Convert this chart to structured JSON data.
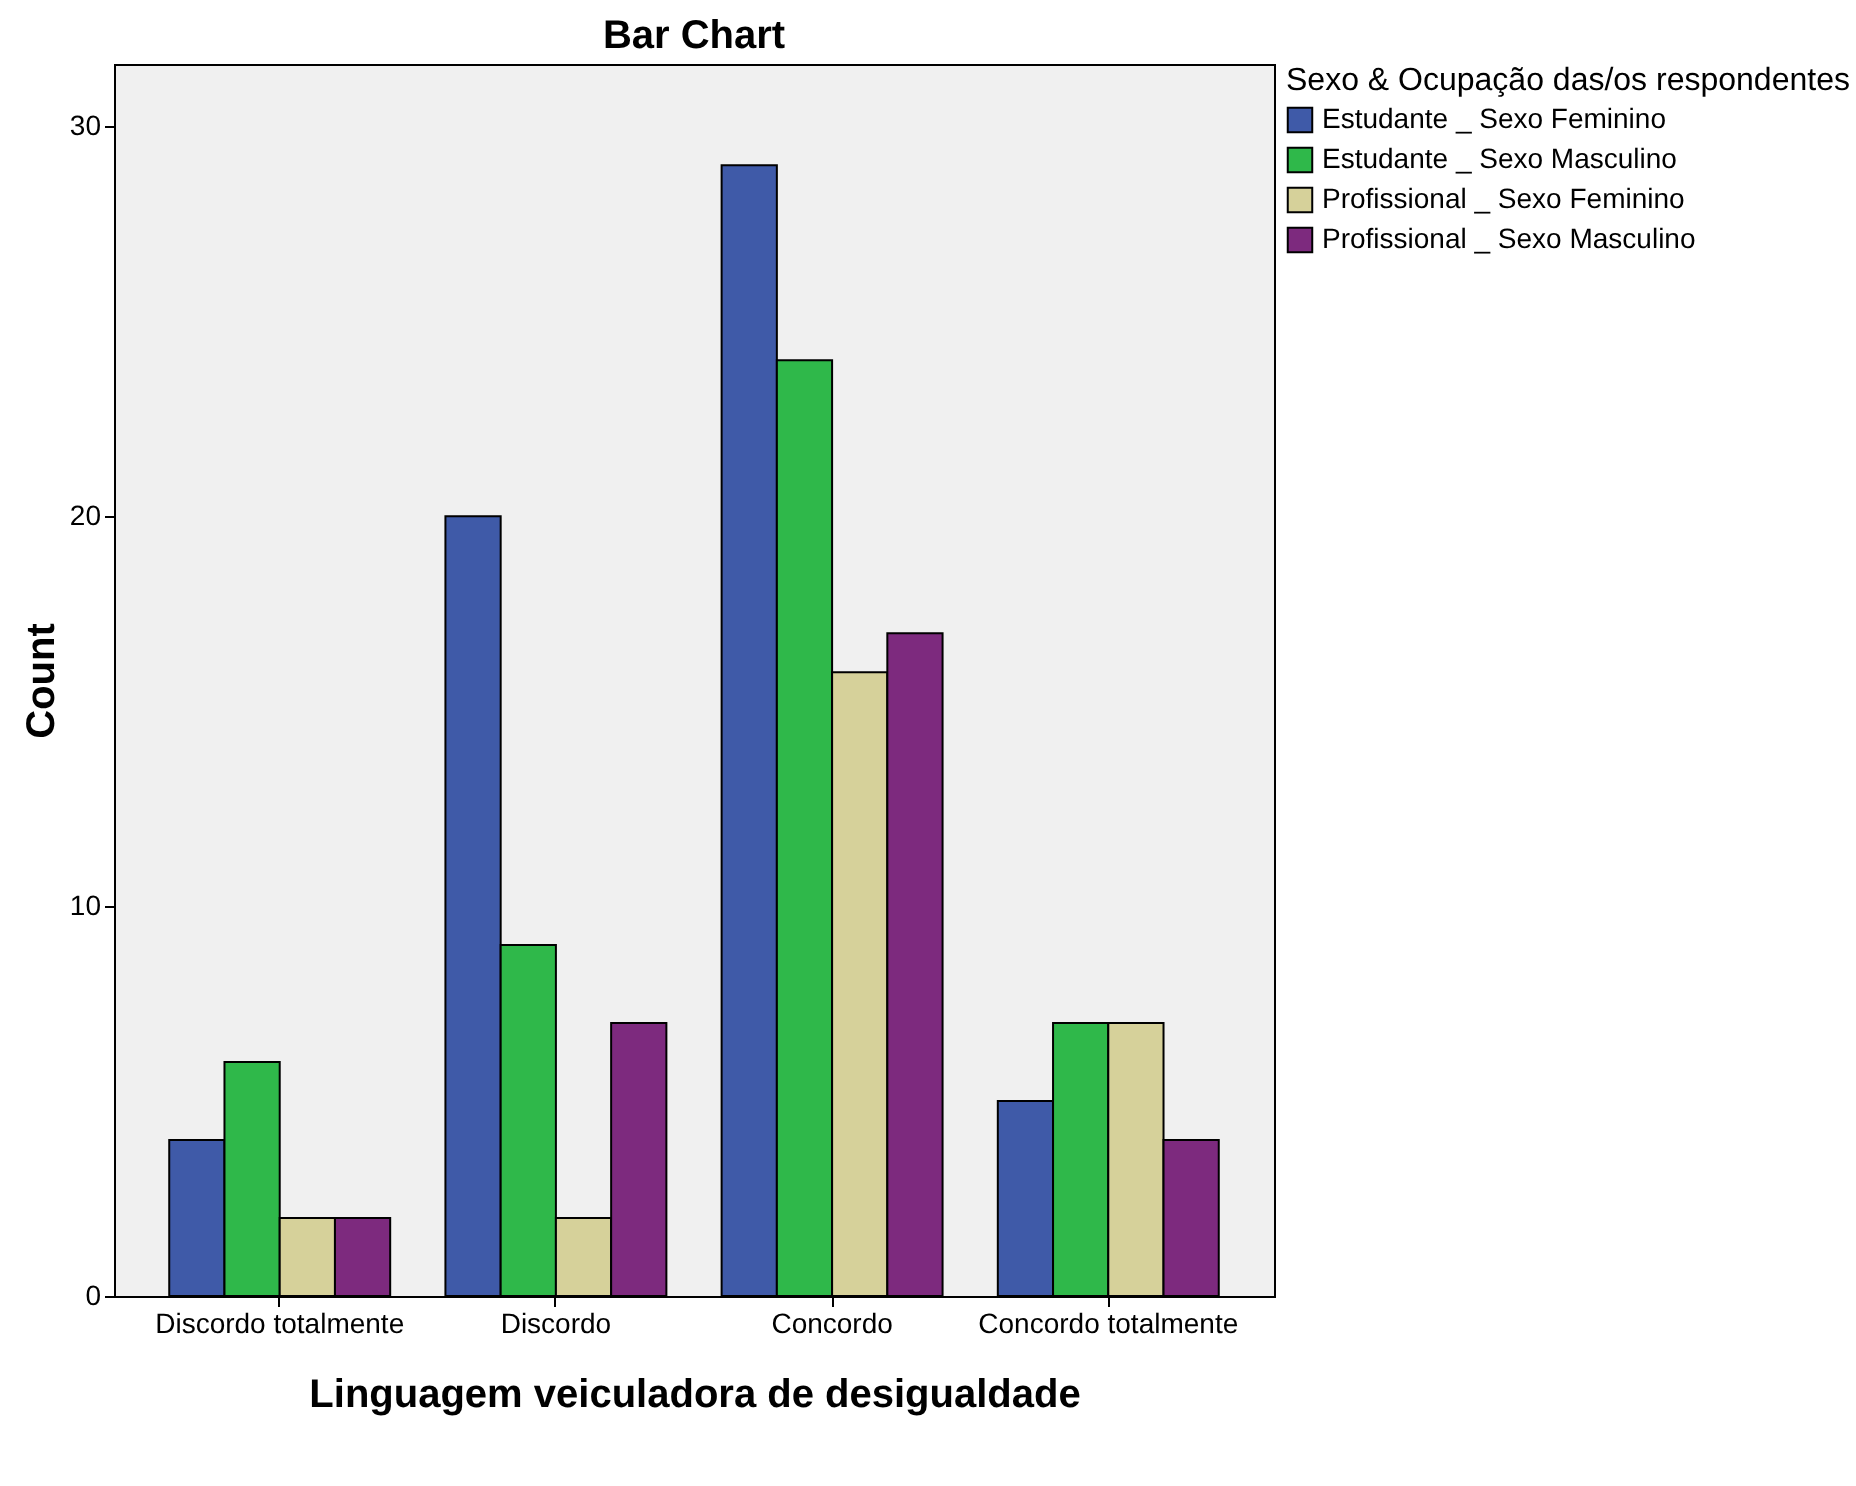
{
  "chart_data": {
    "type": "bar",
    "title": "Bar Chart",
    "xlabel": "Linguagem veiculadora de desigualdade",
    "ylabel": "Count",
    "legend_title": "Sexo & Ocupação das/os respondentes",
    "legend": "top right",
    "grid": false,
    "categories": [
      "Discordo totalmente",
      "Discordo",
      "Concordo",
      "Concordo totalmente"
    ],
    "ylim": [
      0,
      31.6
    ],
    "yticks": [
      0,
      10,
      20,
      30
    ],
    "series": [
      {
        "name": "Estudante _ Sexo Feminino",
        "color": "#3f5aa8",
        "values": [
          4,
          20,
          29,
          5
        ]
      },
      {
        "name": "Estudante _ Sexo Masculino",
        "color": "#2fb84a",
        "values": [
          6,
          9,
          24,
          7
        ]
      },
      {
        "name": "Profissional _ Sexo Feminino",
        "color": "#d6d19a",
        "values": [
          2,
          2,
          16,
          7
        ]
      },
      {
        "name": "Profissional _ Sexo Masculino",
        "color": "#7d2a7e",
        "values": [
          2,
          7,
          17,
          4
        ]
      }
    ]
  }
}
